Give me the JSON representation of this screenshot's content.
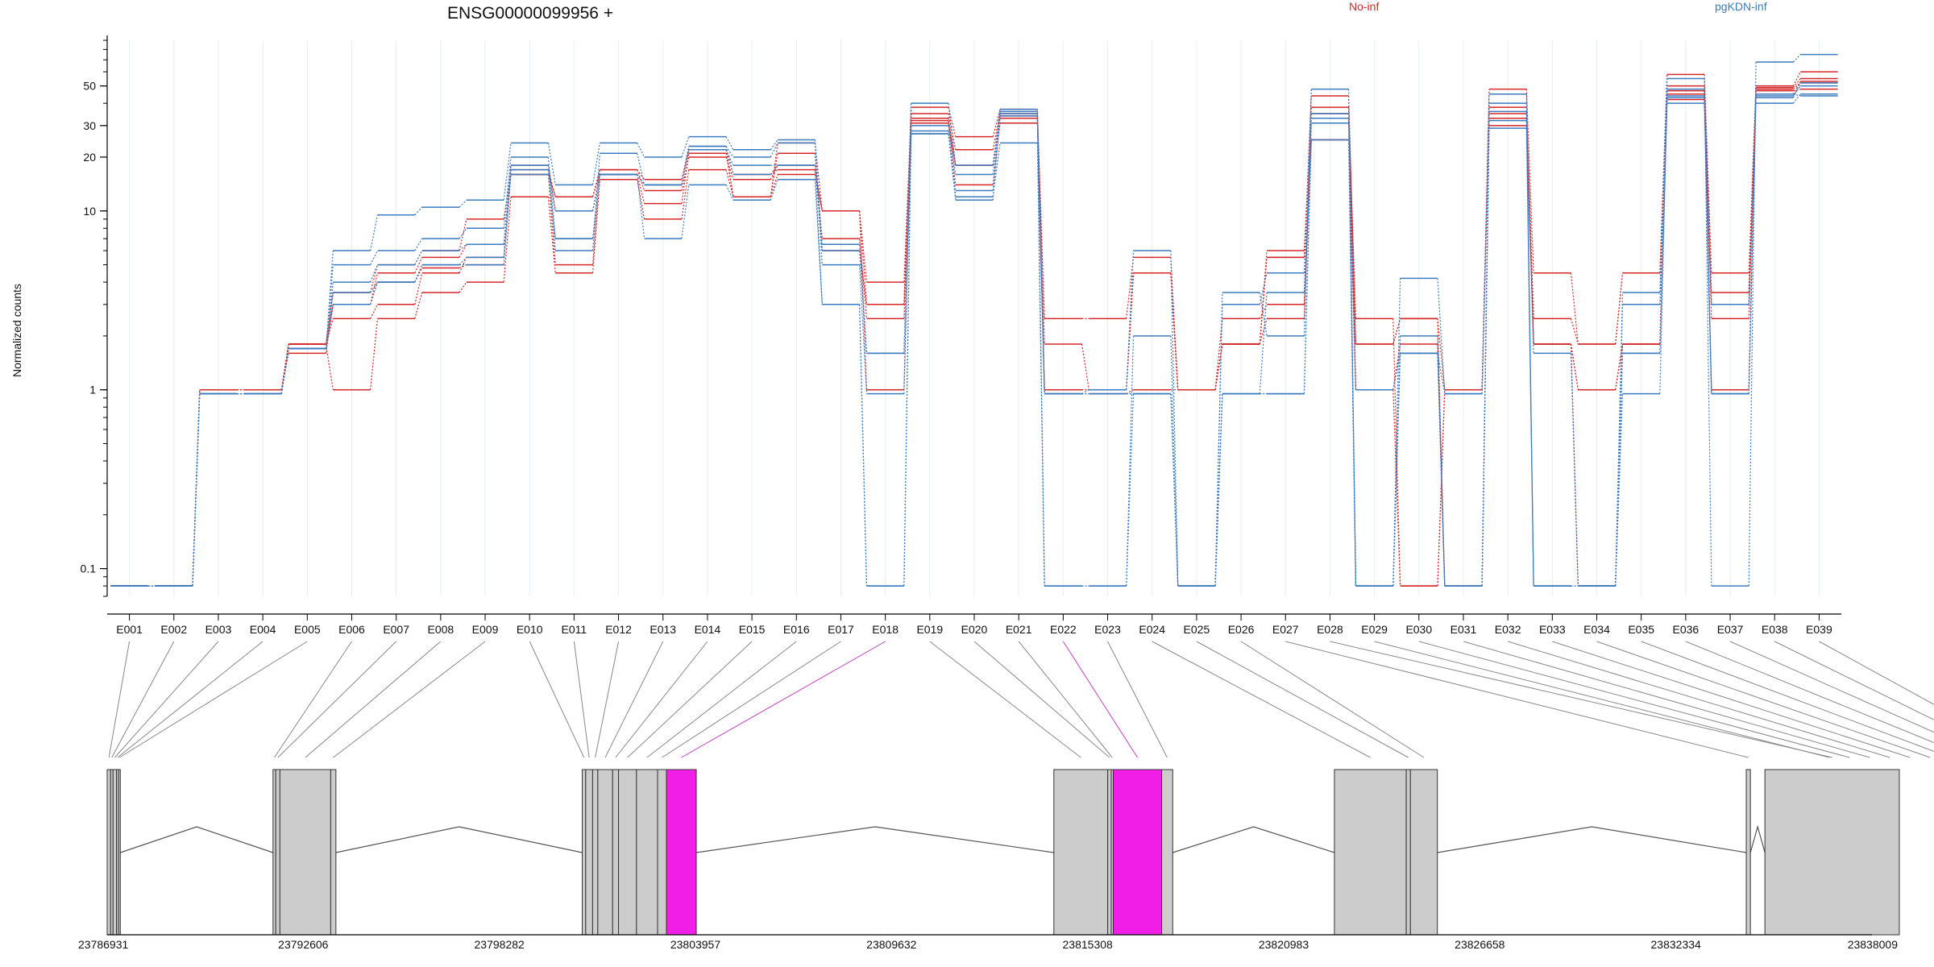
{
  "chart_data": {
    "type": "line",
    "title": "ENSG00000099956 +",
    "ylabel": "Normalized counts",
    "xlabel": "",
    "y_scale": "log",
    "ylim": [
      0.07,
      90
    ],
    "y_ticks": [
      0.1,
      1,
      10,
      20,
      30,
      50
    ],
    "x_categories": [
      "E001",
      "E002",
      "E003",
      "E004",
      "E005",
      "E006",
      "E007",
      "E008",
      "E009",
      "E010",
      "E011",
      "E012",
      "E013",
      "E014",
      "E015",
      "E016",
      "E017",
      "E018",
      "E019",
      "E020",
      "E021",
      "E022",
      "E023",
      "E024",
      "E025",
      "E026",
      "E027",
      "E028",
      "E029",
      "E030",
      "E031",
      "E032",
      "E033",
      "E034",
      "E035",
      "E036",
      "E037",
      "E038",
      "E039"
    ],
    "legend": [
      {
        "name": "No-inf",
        "color": "#d62728"
      },
      {
        "name": "pgKDN-inf",
        "color": "#3b7bbf"
      }
    ],
    "series": [
      {
        "group": "No-inf",
        "color": "#d62728",
        "values": [
          0.08,
          0.08,
          1,
          1,
          1.8,
          3,
          4.5,
          5.5,
          6.5,
          17,
          12,
          17,
          15,
          22,
          12,
          24,
          10,
          3,
          38,
          26,
          37,
          1.8,
          1,
          4.5,
          1,
          1.8,
          5.5,
          44,
          1.8,
          2.5,
          1,
          48,
          4.5,
          1.8,
          4.5,
          58,
          4.5,
          50,
          60
        ]
      },
      {
        "group": "No-inf",
        "color": "#d62728",
        "values": [
          0.08,
          0.08,
          1,
          1,
          1.8,
          2.5,
          3,
          4.5,
          5.5,
          16,
          5,
          17,
          13,
          20,
          15,
          18,
          7,
          2.5,
          35,
          22,
          35,
          2.5,
          2.5,
          5.5,
          1,
          1.8,
          2.5,
          35,
          2.5,
          0.08,
          1,
          38,
          2.5,
          1.8,
          4.5,
          50,
          3,
          49,
          55
        ]
      },
      {
        "group": "No-inf",
        "color": "#d62728",
        "values": [
          0.08,
          0.08,
          0.95,
          0.95,
          1.8,
          1,
          2.5,
          3.5,
          4,
          12,
          4.5,
          15,
          9,
          17,
          12,
          16,
          10,
          4,
          33,
          18,
          33,
          1,
          1,
          4.5,
          1,
          1.8,
          5.5,
          38,
          1,
          0.08,
          1,
          35,
          1.8,
          1,
          1.8,
          47,
          1,
          47,
          48
        ]
      },
      {
        "group": "No-inf",
        "color": "#d62728",
        "values": [
          0.08,
          0.08,
          1,
          1,
          1.6,
          3,
          4,
          4.8,
          5,
          18,
          10,
          16,
          11,
          21,
          12,
          21,
          6,
          3,
          31,
          18,
          34,
          1,
          1,
          4.5,
          1,
          1.8,
          6,
          25,
          1,
          1.8,
          0.08,
          33,
          1.8,
          0.08,
          1.8,
          45,
          2.5,
          45,
          53
        ]
      },
      {
        "group": "No-inf",
        "color": "#d62728",
        "values": [
          0.08,
          0.08,
          1,
          1,
          1.8,
          3.5,
          5,
          6,
          9,
          16,
          12,
          16,
          14,
          22,
          16,
          17,
          10,
          1,
          32,
          14,
          31,
          0.95,
          0.95,
          1,
          1,
          2.5,
          3,
          25,
          1.8,
          2.5,
          0.08,
          30,
          1.8,
          1,
          1.8,
          42,
          3.5,
          48,
          52
        ]
      },
      {
        "group": "pgKDN-inf",
        "color": "#3b7bbf",
        "values": [
          0.08,
          0.08,
          0.95,
          0.95,
          1.7,
          6,
          9.5,
          10.5,
          11.5,
          24,
          14,
          24,
          20,
          26,
          22,
          25,
          6,
          1.6,
          40,
          18,
          37,
          0.95,
          1,
          6,
          0.08,
          3.5,
          2,
          48,
          0.08,
          4.2,
          0.95,
          45,
          0.08,
          0.08,
          3.5,
          55,
          0.08,
          68,
          75
        ]
      },
      {
        "group": "pgKDN-inf",
        "color": "#3b7bbf",
        "values": [
          0.08,
          0.08,
          0.95,
          0.95,
          1.7,
          5,
          6,
          7,
          8,
          20,
          7,
          16,
          14,
          23,
          20,
          24,
          5,
          0.95,
          28,
          12,
          24,
          0.08,
          0.08,
          2,
          0.08,
          3,
          4.5,
          35,
          0.08,
          2,
          0.08,
          32,
          0.08,
          0.08,
          1.6,
          40,
          0.95,
          40,
          45
        ]
      },
      {
        "group": "pgKDN-inf",
        "color": "#3b7bbf",
        "values": [
          0.08,
          0.08,
          0.95,
          0.95,
          1.7,
          4,
          5,
          6,
          6.5,
          18,
          6,
          21,
          14,
          22,
          18,
          18,
          6.5,
          1.6,
          27,
          13,
          36,
          0.08,
          0.08,
          0.95,
          0.08,
          0.95,
          3.5,
          33,
          1,
          1.6,
          0.95,
          40,
          1.6,
          0.08,
          3,
          48,
          3,
          43,
          52
        ]
      },
      {
        "group": "pgKDN-inf",
        "color": "#3b7bbf",
        "values": [
          0.08,
          0.08,
          0.95,
          0.95,
          1.7,
          3,
          4,
          5,
          5,
          17,
          10,
          16,
          14,
          23,
          16,
          18,
          3,
          0.08,
          30,
          16,
          34,
          0.95,
          0.95,
          0.95,
          0.08,
          0.95,
          0.95,
          31,
          0.08,
          1.6,
          0.08,
          29,
          0.08,
          0.08,
          0.95,
          43,
          0.95,
          45,
          44
        ]
      },
      {
        "group": "pgKDN-inf",
        "color": "#3b7bbf",
        "values": [
          0.08,
          0.08,
          0.95,
          0.95,
          1.7,
          3.5,
          4,
          5,
          5.5,
          16,
          7,
          16,
          7,
          14,
          11.5,
          15,
          3,
          0.08,
          27,
          11.5,
          35,
          0.95,
          0.95,
          0.95,
          0.08,
          0.95,
          0.95,
          25,
          0.08,
          1.6,
          0.08,
          36,
          0.08,
          0.08,
          1.6,
          44,
          0.95,
          44,
          50
        ]
      }
    ],
    "gene_model": {
      "coordinate_ticks": [
        "23786931",
        "23792606",
        "23798282",
        "23803957",
        "23809632",
        "23815308",
        "23820983",
        "23826658",
        "23832334",
        "23838009"
      ],
      "coord_range": [
        23786931,
        23838009
      ],
      "highlight_color": "#f01ee6",
      "exon_fill": "#cccccc",
      "exons": [
        {
          "id": "E001",
          "start": 23786931,
          "end": 23787031,
          "highlight": false
        },
        {
          "id": "E002",
          "start": 23787031,
          "end": 23787101,
          "highlight": false
        },
        {
          "id": "E003",
          "start": 23787101,
          "end": 23787201,
          "highlight": false
        },
        {
          "id": "E004",
          "start": 23787201,
          "end": 23787261,
          "highlight": false
        },
        {
          "id": "E005",
          "start": 23787261,
          "end": 23787311,
          "highlight": false
        },
        {
          "id": "E006",
          "start": 23791731,
          "end": 23791811,
          "highlight": false
        },
        {
          "id": "E007",
          "start": 23791811,
          "end": 23791931,
          "highlight": false
        },
        {
          "id": "E008",
          "start": 23791931,
          "end": 23793401,
          "highlight": false
        },
        {
          "id": "E009",
          "start": 23793401,
          "end": 23793551,
          "highlight": false
        },
        {
          "id": "E010",
          "start": 23800681,
          "end": 23800781,
          "highlight": false
        },
        {
          "id": "E011",
          "start": 23800781,
          "end": 23800981,
          "highlight": false
        },
        {
          "id": "E012",
          "start": 23800981,
          "end": 23801131,
          "highlight": false
        },
        {
          "id": "E013",
          "start": 23801131,
          "end": 23801561,
          "highlight": false
        },
        {
          "id": "E014",
          "start": 23801561,
          "end": 23801731,
          "highlight": false
        },
        {
          "id": "E015",
          "start": 23801731,
          "end": 23802251,
          "highlight": false
        },
        {
          "id": "E016",
          "start": 23802251,
          "end": 23802861,
          "highlight": false
        },
        {
          "id": "E017",
          "start": 23802861,
          "end": 23803121,
          "highlight": false
        },
        {
          "id": "E018",
          "start": 23803121,
          "end": 23803981,
          "highlight": true
        },
        {
          "id": "E019",
          "start": 23814331,
          "end": 23815891,
          "highlight": false
        },
        {
          "id": "E020",
          "start": 23815891,
          "end": 23815991,
          "highlight": false
        },
        {
          "id": "E021",
          "start": 23815991,
          "end": 23816051,
          "highlight": false
        },
        {
          "id": "E022",
          "start": 23816051,
          "end": 23817451,
          "highlight": true
        },
        {
          "id": "E023",
          "start": 23817451,
          "end": 23817771,
          "highlight": false
        },
        {
          "id": "E024",
          "start": 23822451,
          "end": 23824531,
          "highlight": false
        },
        {
          "id": "E025",
          "start": 23824531,
          "end": 23824651,
          "highlight": false
        },
        {
          "id": "E026",
          "start": 23824651,
          "end": 23825431,
          "highlight": false
        },
        {
          "id": "E027",
          "start": 23834371,
          "end": 23834491,
          "highlight": false
        },
        {
          "id": "E028",
          "start": 23834911,
          "end": 23838801,
          "highlight": false
        }
      ],
      "connectors": [
        1,
        2,
        3,
        4,
        5,
        6,
        7,
        8,
        9,
        10,
        11,
        12,
        13,
        14,
        15,
        16,
        17,
        18,
        19,
        20,
        21,
        22,
        23,
        24,
        25,
        26,
        27,
        28,
        29,
        30,
        31,
        32,
        33,
        34,
        35,
        36,
        37,
        38,
        39
      ]
    }
  }
}
